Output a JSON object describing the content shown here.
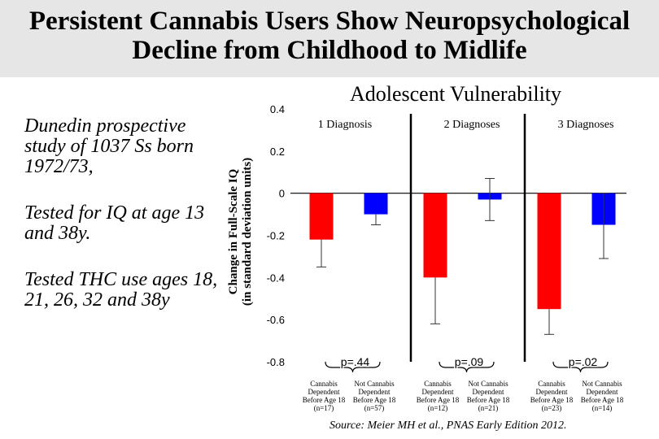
{
  "title_lines": [
    "Persistent Cannabis Users Show Neuropsychological",
    "Decline from Childhood to Midlife"
  ],
  "left_notes": [
    "Dunedin prospective study of 1037 Ss born 1972/73,",
    "Tested for IQ at age 13 and 38y.",
    " Tested THC use ages 18, 21, 26, 32 and 38y"
  ],
  "source": "Source: Meier MH et al., PNAS Early Edition 2012.",
  "colors": {
    "cannabis": "#ff0000",
    "not_cannabis": "#0000ff",
    "title_band": "#e6e6e6"
  },
  "chart_data": {
    "type": "bar",
    "title": "Adolescent Vulnerability",
    "ylabel_lines": [
      "Change in Full-Scale IQ",
      "(in standard deviation units)"
    ],
    "ylim": [
      -0.8,
      0.4
    ],
    "yticks": [
      {
        "value": 0.4,
        "label": "0.4"
      },
      {
        "value": 0.2,
        "label": "0.2"
      },
      {
        "value": 0,
        "label": "0"
      },
      {
        "value": -0.2,
        "label": "-0.2"
      },
      {
        "value": -0.4,
        "label": "-0.4"
      },
      {
        "value": -0.6,
        "label": "-0.6"
      },
      {
        "value": -0.8,
        "label": "-0.8"
      }
    ],
    "groups": [
      {
        "label": "1 Diagnosis",
        "p_value": "p=.44",
        "bars": [
          {
            "series": "Cannabis",
            "value": -0.22,
            "err_low": -0.35,
            "err_high": -0.22,
            "label_lines": [
              "Cannabis",
              "Dependent",
              "Before Age 18",
              "(n=17)"
            ]
          },
          {
            "series": "Not Cannabis",
            "value": -0.1,
            "err_low": -0.15,
            "err_high": -0.1,
            "label_lines": [
              "Not Cannabis",
              "Dependent",
              "Before Age 18",
              "(n=57)"
            ]
          }
        ]
      },
      {
        "label": "2 Diagnoses",
        "p_value": "p=.09",
        "bars": [
          {
            "series": "Cannabis",
            "value": -0.4,
            "err_low": -0.62,
            "err_high": -0.4,
            "label_lines": [
              "Cannabis",
              "Dependent",
              "Before Age 18",
              "(n=12)"
            ]
          },
          {
            "series": "Not Cannabis",
            "value": -0.03,
            "err_low": -0.13,
            "err_high": 0.07,
            "label_lines": [
              "Not Cannabis",
              "Dependent",
              "Before Age 18",
              "(n=21)"
            ]
          }
        ]
      },
      {
        "label": "3 Diagnoses",
        "p_value": "p=.02",
        "bars": [
          {
            "series": "Cannabis",
            "value": -0.55,
            "err_low": -0.67,
            "err_high": -0.55,
            "label_lines": [
              "Cannabis",
              "Dependent",
              "Before Age 18",
              "(n=23)"
            ]
          },
          {
            "series": "Not Cannabis",
            "value": -0.15,
            "err_low": -0.31,
            "err_high": 0.0,
            "label_lines": [
              "Not Cannabis",
              "Dependent",
              "Before Age 18",
              "(n=14)"
            ]
          }
        ]
      }
    ]
  }
}
